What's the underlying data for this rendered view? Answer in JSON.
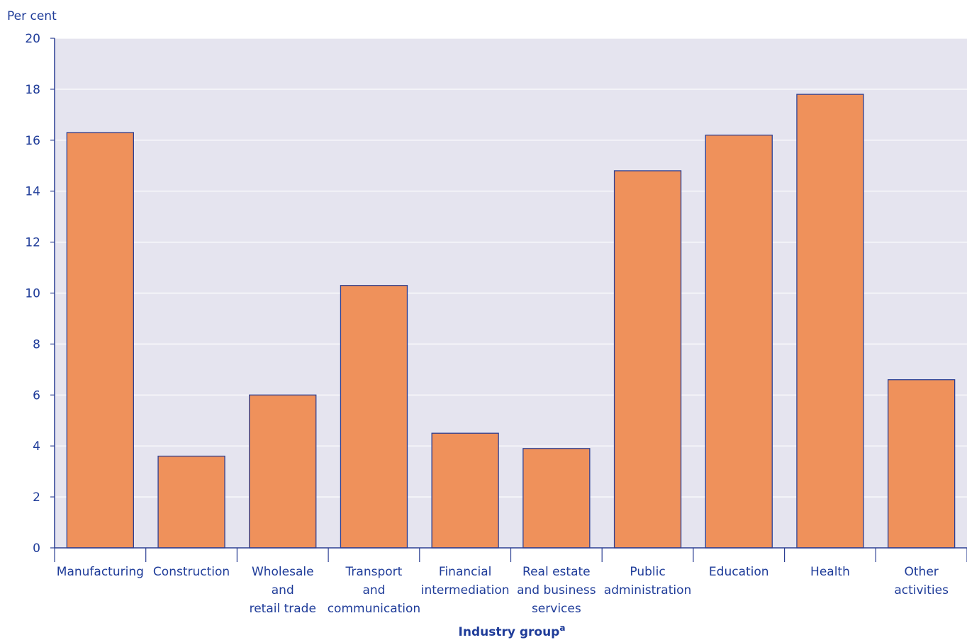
{
  "chart_data": {
    "type": "bar",
    "ylabel": "Per cent",
    "xlabel": "Industry group",
    "xlabel_superscript": "a",
    "ylim": [
      0,
      20
    ],
    "yticks": [
      0,
      2,
      4,
      6,
      8,
      10,
      12,
      14,
      16,
      18,
      20
    ],
    "grid": true,
    "categories": [
      [
        "Manufacturing"
      ],
      [
        "Construction"
      ],
      [
        "Wholesale",
        "and",
        "retail trade"
      ],
      [
        "Transport",
        "and",
        "communication"
      ],
      [
        "Financial",
        "intermediation"
      ],
      [
        "Real estate",
        "and business",
        "services"
      ],
      [
        "Public",
        "administration"
      ],
      [
        "Education"
      ],
      [
        "Health"
      ],
      [
        "Other",
        "activities"
      ]
    ],
    "values": [
      16.3,
      3.6,
      6.0,
      10.3,
      4.5,
      3.9,
      14.8,
      16.2,
      17.8,
      6.6
    ]
  },
  "colors": {
    "plot_background": "#e5e4ef",
    "bar_fill": "#ef915b",
    "bar_stroke": "#2c3f93",
    "axis": "#2c3f93",
    "text": "#1f3c99",
    "grid": "#ffffff"
  }
}
